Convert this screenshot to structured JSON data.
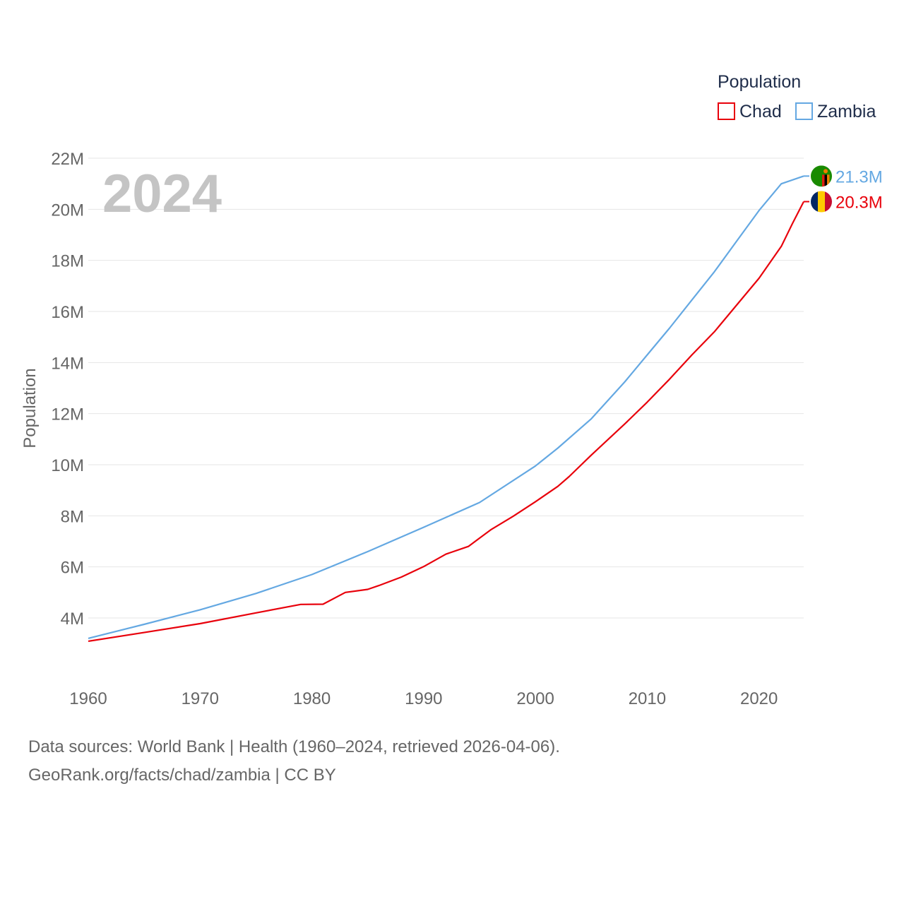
{
  "chart_data": {
    "type": "line",
    "ylabel": "Population",
    "xlabel": "",
    "year_watermark": "2024",
    "legend": {
      "title": "Population",
      "placement": "top-right"
    },
    "xlim": [
      1960,
      2024
    ],
    "ylim": [
      2000000,
      22500000
    ],
    "x_ticks": [
      {
        "value": 1960,
        "label": "1960"
      },
      {
        "value": 1970,
        "label": "1970"
      },
      {
        "value": 1980,
        "label": "1980"
      },
      {
        "value": 1990,
        "label": "1990"
      },
      {
        "value": 2000,
        "label": "2000"
      },
      {
        "value": 2010,
        "label": "2010"
      },
      {
        "value": 2020,
        "label": "2020"
      }
    ],
    "y_ticks": [
      {
        "value": 4000000,
        "label": "4M"
      },
      {
        "value": 6000000,
        "label": "6M"
      },
      {
        "value": 8000000,
        "label": "8M"
      },
      {
        "value": 10000000,
        "label": "10M"
      },
      {
        "value": 12000000,
        "label": "12M"
      },
      {
        "value": 14000000,
        "label": "14M"
      },
      {
        "value": 16000000,
        "label": "16M"
      },
      {
        "value": 18000000,
        "label": "18M"
      },
      {
        "value": 20000000,
        "label": "20M"
      },
      {
        "value": 22000000,
        "label": "22M"
      }
    ],
    "series": [
      {
        "name": "Chad",
        "color": "#e8000b",
        "end_label": "20.3M",
        "flag_icon": "chad-flag-icon",
        "flag_colors": [
          "#002664",
          "#fecb00",
          "#c60c30"
        ],
        "points": [
          [
            1960,
            3090000
          ],
          [
            1965,
            3430000
          ],
          [
            1970,
            3780000
          ],
          [
            1975,
            4200000
          ],
          [
            1979,
            4530000
          ],
          [
            1981,
            4540000
          ],
          [
            1983,
            5000000
          ],
          [
            1985,
            5120000
          ],
          [
            1986,
            5270000
          ],
          [
            1988,
            5600000
          ],
          [
            1990,
            6010000
          ],
          [
            1992,
            6500000
          ],
          [
            1994,
            6800000
          ],
          [
            1996,
            7450000
          ],
          [
            1998,
            7980000
          ],
          [
            2000,
            8550000
          ],
          [
            2002,
            9150000
          ],
          [
            2003,
            9530000
          ],
          [
            2005,
            10380000
          ],
          [
            2008,
            11600000
          ],
          [
            2010,
            12450000
          ],
          [
            2012,
            13350000
          ],
          [
            2014,
            14300000
          ],
          [
            2016,
            15200000
          ],
          [
            2018,
            16250000
          ],
          [
            2020,
            17300000
          ],
          [
            2022,
            18550000
          ],
          [
            2023,
            19450000
          ],
          [
            2024,
            20300000
          ]
        ]
      },
      {
        "name": "Zambia",
        "color": "#64a8e2",
        "end_label": "21.3M",
        "flag_icon": "zambia-flag-icon",
        "flag_colors": [
          "#198a00",
          "#de2010",
          "#000000",
          "#ef7d00"
        ],
        "points": [
          [
            1960,
            3200000
          ],
          [
            1965,
            3750000
          ],
          [
            1970,
            4320000
          ],
          [
            1975,
            4960000
          ],
          [
            1980,
            5700000
          ],
          [
            1985,
            6600000
          ],
          [
            1990,
            7550000
          ],
          [
            1995,
            8520000
          ],
          [
            2000,
            9950000
          ],
          [
            2002,
            10650000
          ],
          [
            2005,
            11800000
          ],
          [
            2008,
            13250000
          ],
          [
            2010,
            14300000
          ],
          [
            2012,
            15350000
          ],
          [
            2014,
            16450000
          ],
          [
            2016,
            17550000
          ],
          [
            2018,
            18750000
          ],
          [
            2020,
            19950000
          ],
          [
            2022,
            21000000
          ],
          [
            2024,
            21300000
          ]
        ]
      }
    ]
  },
  "footer": {
    "line1": "Data sources: World Bank | Health (1960–2024, retrieved 2026-04-06).",
    "line2": "GeoRank.org/facts/chad/zambia | CC BY"
  }
}
